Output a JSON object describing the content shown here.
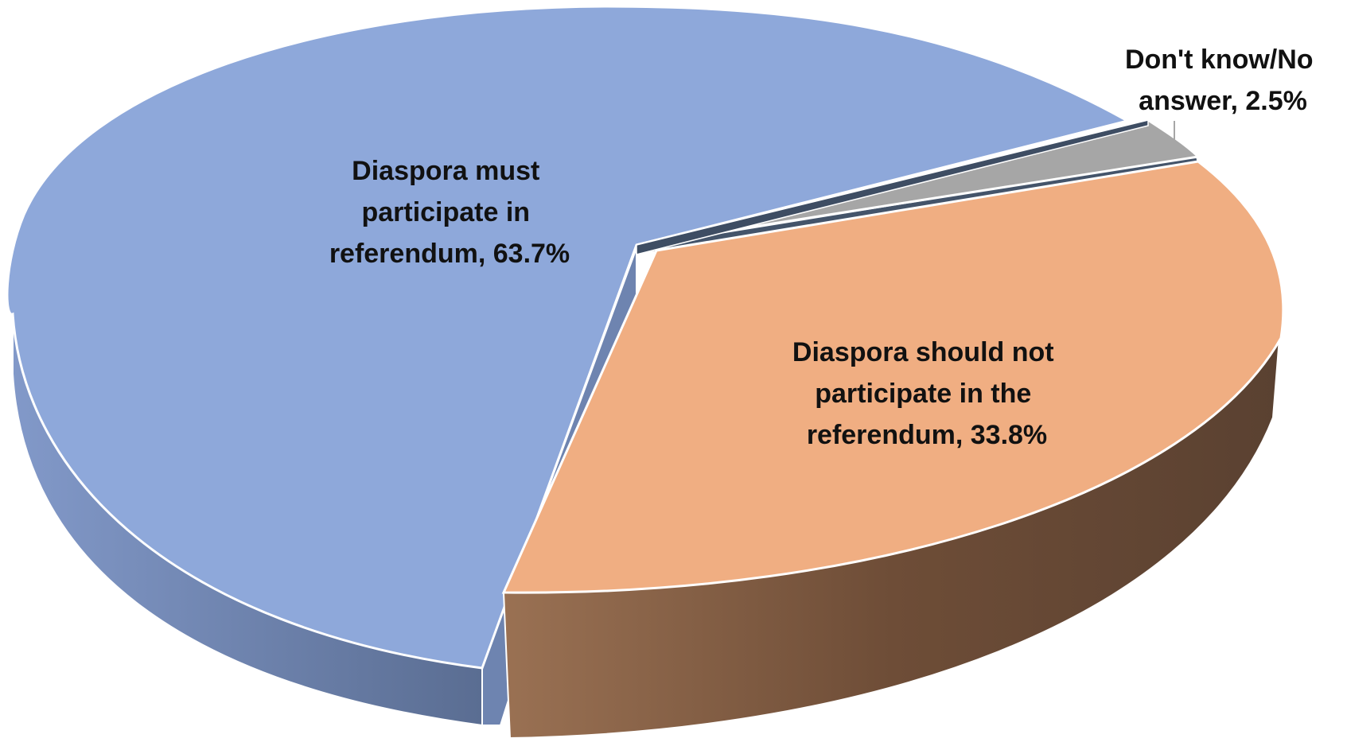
{
  "chart_data": {
    "type": "pie",
    "style": "3d-exploded",
    "title": "",
    "slices": [
      {
        "name": "Diaspora must participate in referendum",
        "value": 63.7,
        "label_lines": [
          "Diaspora must",
          "participate in",
          "referendum, 63.7%"
        ],
        "color": "#8EA8DA",
        "side_color": "#6F84AE"
      },
      {
        "name": "Don't know/No answer",
        "value": 2.5,
        "label_lines": [
          "Don't know/No",
          "answer, 2.5%"
        ],
        "color": "#A6A6A6",
        "side_color": "#7F7F7F"
      },
      {
        "name": "Diaspora should not participate in the referendum",
        "value": 33.8,
        "label_lines": [
          "Diaspora should not",
          "participate in the",
          "referendum, 33.8%"
        ],
        "color": "#F0AE82",
        "side_color": "#6E4A34"
      }
    ]
  }
}
